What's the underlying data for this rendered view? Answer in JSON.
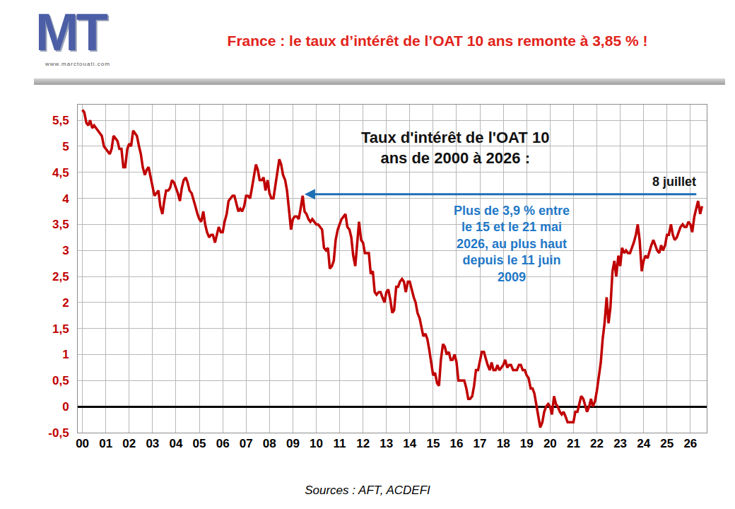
{
  "chart_data": {
    "type": "line",
    "title": "France : le taux d’intérêt de l’OAT 10 ans remonte à 3,85 % !",
    "subtitle": "Taux d'intérêt de l'OAT 10 ans de 2000 à 2026 :",
    "annotations": [
      {
        "text": "8 juillet"
      },
      {
        "text": "Plus de 3,9 % entre le 15 et le 21 mai 2026, au plus haut depuis le 11 juin 2009"
      }
    ],
    "arrow": {
      "x_from": 2026.3,
      "x_to": 2009.5,
      "y": 4.08
    },
    "source": "Sources : AFT, ACDEFI",
    "logo": {
      "text": "MT",
      "url": "www.marctouati.com"
    },
    "color": "#c00000",
    "grid": true,
    "xlim": [
      1999.8,
      2026.7
    ],
    "ylim": [
      -0.5,
      5.8
    ],
    "xticks": [
      {
        "value": 2000,
        "label": "00"
      },
      {
        "value": 2001,
        "label": "01"
      },
      {
        "value": 2002,
        "label": "02"
      },
      {
        "value": 2003,
        "label": "03"
      },
      {
        "value": 2004,
        "label": "04"
      },
      {
        "value": 2005,
        "label": "05"
      },
      {
        "value": 2006,
        "label": "06"
      },
      {
        "value": 2007,
        "label": "07"
      },
      {
        "value": 2008,
        "label": "08"
      },
      {
        "value": 2009,
        "label": "09"
      },
      {
        "value": 2010,
        "label": "10"
      },
      {
        "value": 2011,
        "label": "11"
      },
      {
        "value": 2012,
        "label": "12"
      },
      {
        "value": 2013,
        "label": "13"
      },
      {
        "value": 2014,
        "label": "14"
      },
      {
        "value": 2015,
        "label": "15"
      },
      {
        "value": 2016,
        "label": "16"
      },
      {
        "value": 2017,
        "label": "17"
      },
      {
        "value": 2018,
        "label": "18"
      },
      {
        "value": 2019,
        "label": "19"
      },
      {
        "value": 2020,
        "label": "20"
      },
      {
        "value": 2021,
        "label": "21"
      },
      {
        "value": 2022,
        "label": "22"
      },
      {
        "value": 2023,
        "label": "23"
      },
      {
        "value": 2024,
        "label": "24"
      },
      {
        "value": 2025,
        "label": "25"
      },
      {
        "value": 2026,
        "label": "26"
      }
    ],
    "yticks": [
      {
        "value": -0.5,
        "label": "-0,5"
      },
      0,
      {
        "value": 0.5,
        "label": "0,5"
      },
      1,
      {
        "value": 1.5,
        "label": "1,5"
      },
      2,
      {
        "value": 2.5,
        "label": "2,5"
      },
      3,
      {
        "value": 3.5,
        "label": "3,5"
      },
      4,
      {
        "value": 4.5,
        "label": "4,5"
      },
      5,
      {
        "value": 5.5,
        "label": "5,5"
      }
    ],
    "x": [
      2000,
      2000.08,
      2000.17,
      2000.25,
      2000.33,
      2000.42,
      2000.5,
      2000.58,
      2000.67,
      2000.75,
      2000.83,
      2000.92,
      2001,
      2001.08,
      2001.17,
      2001.25,
      2001.33,
      2001.42,
      2001.5,
      2001.58,
      2001.67,
      2001.75,
      2001.83,
      2001.92,
      2002,
      2002.08,
      2002.17,
      2002.25,
      2002.33,
      2002.42,
      2002.5,
      2002.58,
      2002.67,
      2002.75,
      2002.83,
      2002.92,
      2003,
      2003.08,
      2003.17,
      2003.25,
      2003.33,
      2003.42,
      2003.5,
      2003.58,
      2003.67,
      2003.75,
      2003.83,
      2003.92,
      2004,
      2004.08,
      2004.17,
      2004.25,
      2004.33,
      2004.42,
      2004.5,
      2004.58,
      2004.67,
      2004.75,
      2004.83,
      2004.92,
      2005,
      2005.08,
      2005.17,
      2005.25,
      2005.33,
      2005.42,
      2005.5,
      2005.58,
      2005.67,
      2005.75,
      2005.83,
      2005.92,
      2006,
      2006.08,
      2006.17,
      2006.25,
      2006.33,
      2006.42,
      2006.5,
      2006.58,
      2006.67,
      2006.75,
      2006.83,
      2006.92,
      2007,
      2007.08,
      2007.17,
      2007.25,
      2007.33,
      2007.42,
      2007.5,
      2007.58,
      2007.67,
      2007.75,
      2007.83,
      2007.92,
      2008,
      2008.08,
      2008.17,
      2008.25,
      2008.33,
      2008.42,
      2008.5,
      2008.58,
      2008.67,
      2008.75,
      2008.83,
      2008.92,
      2009,
      2009.08,
      2009.17,
      2009.25,
      2009.33,
      2009.42,
      2009.5,
      2009.58,
      2009.67,
      2009.75,
      2009.83,
      2009.92,
      2010,
      2010.08,
      2010.17,
      2010.25,
      2010.33,
      2010.42,
      2010.5,
      2010.58,
      2010.67,
      2010.75,
      2010.83,
      2010.92,
      2011,
      2011.08,
      2011.17,
      2011.25,
      2011.33,
      2011.42,
      2011.5,
      2011.58,
      2011.67,
      2011.75,
      2011.83,
      2011.92,
      2012,
      2012.08,
      2012.17,
      2012.25,
      2012.33,
      2012.42,
      2012.5,
      2012.58,
      2012.67,
      2012.75,
      2012.83,
      2012.92,
      2013,
      2013.08,
      2013.17,
      2013.25,
      2013.33,
      2013.42,
      2013.5,
      2013.58,
      2013.67,
      2013.75,
      2013.83,
      2013.92,
      2014,
      2014.08,
      2014.17,
      2014.25,
      2014.33,
      2014.42,
      2014.5,
      2014.58,
      2014.67,
      2014.75,
      2014.83,
      2014.92,
      2015,
      2015.08,
      2015.17,
      2015.25,
      2015.33,
      2015.42,
      2015.5,
      2015.58,
      2015.67,
      2015.75,
      2015.83,
      2015.92,
      2016,
      2016.08,
      2016.17,
      2016.25,
      2016.33,
      2016.42,
      2016.5,
      2016.58,
      2016.67,
      2016.75,
      2016.83,
      2016.92,
      2017,
      2017.08,
      2017.17,
      2017.25,
      2017.33,
      2017.42,
      2017.5,
      2017.58,
      2017.67,
      2017.75,
      2017.83,
      2017.92,
      2018,
      2018.08,
      2018.17,
      2018.25,
      2018.33,
      2018.42,
      2018.5,
      2018.58,
      2018.67,
      2018.75,
      2018.83,
      2018.92,
      2019,
      2019.08,
      2019.17,
      2019.25,
      2019.33,
      2019.42,
      2019.5,
      2019.58,
      2019.67,
      2019.75,
      2019.83,
      2019.92,
      2020,
      2020.08,
      2020.17,
      2020.25,
      2020.33,
      2020.42,
      2020.5,
      2020.58,
      2020.67,
      2020.75,
      2020.83,
      2020.92,
      2021,
      2021.08,
      2021.17,
      2021.25,
      2021.33,
      2021.42,
      2021.5,
      2021.58,
      2021.67,
      2021.75,
      2021.83,
      2021.92,
      2022,
      2022.08,
      2022.17,
      2022.25,
      2022.33,
      2022.42,
      2022.5,
      2022.58,
      2022.67,
      2022.75,
      2022.83,
      2022.92,
      2023,
      2023.08,
      2023.17,
      2023.25,
      2023.33,
      2023.42,
      2023.5,
      2023.58,
      2023.67,
      2023.75,
      2023.83,
      2023.92,
      2024,
      2024.08,
      2024.17,
      2024.25,
      2024.33,
      2024.42,
      2024.5,
      2024.58,
      2024.67,
      2024.75,
      2024.83,
      2024.92,
      2025,
      2025.08,
      2025.17,
      2025.25,
      2025.33,
      2025.42,
      2025.5,
      2025.58,
      2025.67,
      2025.75,
      2025.83,
      2025.92,
      2026,
      2026.08,
      2026.17,
      2026.25,
      2026.33,
      2026.42,
      2026.5
    ],
    "values": [
      5.7,
      5.65,
      5.45,
      5.4,
      5.5,
      5.35,
      5.4,
      5.35,
      5.3,
      5.25,
      5.2,
      5.0,
      4.95,
      4.9,
      4.85,
      4.95,
      5.2,
      5.15,
      5.1,
      4.95,
      4.95,
      4.6,
      4.6,
      4.95,
      5.05,
      5.0,
      5.3,
      5.25,
      5.2,
      5.0,
      4.85,
      4.6,
      4.45,
      4.55,
      4.6,
      4.4,
      4.2,
      4.05,
      4.1,
      4.15,
      3.85,
      3.7,
      3.95,
      4.15,
      4.15,
      4.2,
      4.35,
      4.3,
      4.2,
      4.1,
      3.95,
      4.2,
      4.35,
      4.4,
      4.3,
      4.15,
      4.1,
      3.95,
      3.85,
      3.7,
      3.6,
      3.55,
      3.75,
      3.5,
      3.35,
      3.25,
      3.3,
      3.3,
      3.15,
      3.3,
      3.45,
      3.35,
      3.35,
      3.55,
      3.7,
      3.95,
      4.0,
      4.05,
      4.05,
      3.9,
      3.75,
      3.8,
      3.75,
      3.85,
      4.05,
      4.05,
      4.0,
      4.2,
      4.4,
      4.65,
      4.55,
      4.35,
      4.35,
      4.4,
      4.15,
      4.35,
      4.1,
      4.0,
      4.0,
      4.25,
      4.45,
      4.75,
      4.65,
      4.45,
      4.35,
      4.15,
      3.8,
      3.4,
      3.6,
      3.65,
      3.65,
      3.6,
      3.8,
      4.05,
      3.75,
      3.7,
      3.6,
      3.55,
      3.6,
      3.55,
      3.5,
      3.5,
      3.45,
      3.4,
      3.05,
      3.0,
      3.05,
      2.65,
      2.7,
      2.8,
      3.2,
      3.4,
      3.5,
      3.6,
      3.65,
      3.7,
      3.45,
      3.4,
      3.25,
      2.9,
      2.7,
      3.1,
      3.55,
      3.2,
      3.15,
      2.95,
      2.95,
      2.95,
      2.55,
      2.6,
      2.2,
      2.15,
      2.2,
      2.2,
      2.1,
      2.0,
      2.2,
      2.25,
      2.05,
      1.8,
      1.85,
      2.3,
      2.3,
      2.4,
      2.45,
      2.4,
      2.2,
      2.4,
      2.4,
      2.25,
      2.1,
      2.0,
      1.8,
      1.7,
      1.55,
      1.35,
      1.4,
      1.3,
      1.1,
      0.85,
      0.6,
      0.65,
      0.45,
      0.4,
      0.9,
      1.2,
      1.15,
      1.0,
      1.05,
      0.9,
      0.9,
      1.0,
      0.85,
      0.5,
      0.5,
      0.5,
      0.5,
      0.35,
      0.15,
      0.15,
      0.2,
      0.4,
      0.7,
      0.7,
      0.85,
      1.05,
      1.05,
      0.9,
      0.8,
      0.7,
      0.85,
      0.7,
      0.7,
      0.8,
      0.7,
      0.75,
      0.8,
      0.9,
      0.75,
      0.8,
      0.8,
      0.7,
      0.7,
      0.7,
      0.8,
      0.8,
      0.7,
      0.7,
      0.6,
      0.55,
      0.35,
      0.35,
      0.25,
      0.0,
      -0.15,
      -0.4,
      -0.3,
      -0.1,
      0.0,
      0.05,
      0.0,
      -0.15,
      0.2,
      0.05,
      0.0,
      -0.1,
      -0.15,
      -0.1,
      -0.2,
      -0.3,
      -0.3,
      -0.3,
      -0.3,
      -0.1,
      -0.1,
      0.05,
      0.2,
      0.15,
      0.0,
      -0.1,
      0.0,
      0.15,
      0.0,
      0.1,
      0.3,
      0.6,
      0.85,
      1.3,
      1.6,
      2.1,
      1.6,
      1.9,
      2.6,
      2.8,
      2.5,
      2.9,
      2.7,
      3.05,
      2.95,
      3.0,
      2.95,
      2.95,
      3.05,
      3.15,
      3.3,
      3.5,
      3.2,
      2.6,
      2.8,
      2.9,
      2.85,
      3.0,
      3.1,
      3.2,
      3.1,
      3.0,
      2.95,
      3.1,
      3.0,
      3.1,
      3.3,
      3.3,
      3.5,
      3.3,
      3.2,
      3.25,
      3.35,
      3.45,
      3.5,
      3.45,
      3.45,
      3.55,
      3.5,
      3.35,
      3.65,
      3.8,
      3.95,
      3.7,
      3.85
    ]
  }
}
